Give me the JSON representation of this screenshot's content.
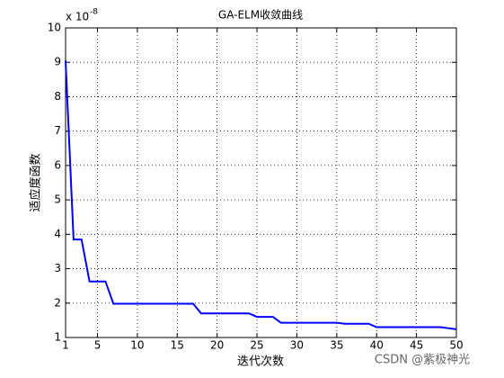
{
  "chart_data": {
    "type": "line",
    "title": "GA-ELM收敛曲线",
    "xlabel": "迭代次数",
    "ylabel": "适应度函数",
    "y_multiplier": {
      "base": "x 10",
      "exponent": "-8"
    },
    "x": [
      1,
      2,
      3,
      4,
      5,
      6,
      7,
      8,
      9,
      10,
      11,
      12,
      13,
      14,
      15,
      16,
      17,
      18,
      19,
      20,
      21,
      22,
      23,
      24,
      25,
      26,
      27,
      28,
      29,
      30,
      31,
      32,
      33,
      34,
      35,
      36,
      37,
      38,
      39,
      40,
      41,
      42,
      43,
      44,
      45,
      46,
      47,
      48,
      49,
      50
    ],
    "series": [
      {
        "color": "#0000ff",
        "values": [
          9.05,
          3.85,
          3.85,
          2.63,
          2.63,
          2.63,
          1.98,
          1.98,
          1.98,
          1.98,
          1.98,
          1.98,
          1.98,
          1.98,
          1.98,
          1.98,
          1.98,
          1.7,
          1.7,
          1.7,
          1.7,
          1.7,
          1.7,
          1.7,
          1.6,
          1.6,
          1.6,
          1.43,
          1.43,
          1.43,
          1.43,
          1.43,
          1.43,
          1.43,
          1.43,
          1.4,
          1.4,
          1.4,
          1.4,
          1.3,
          1.3,
          1.3,
          1.3,
          1.3,
          1.3,
          1.3,
          1.3,
          1.3,
          1.27,
          1.24
        ]
      }
    ],
    "xlim": [
      1,
      50
    ],
    "xticks": [
      1,
      5,
      10,
      15,
      20,
      25,
      30,
      35,
      40,
      45,
      50
    ],
    "ylim": [
      1,
      10
    ],
    "yticks": [
      1,
      2,
      3,
      4,
      5,
      6,
      7,
      8,
      9,
      10
    ],
    "grid": true
  },
  "watermark": "CSDN @紫极神光"
}
